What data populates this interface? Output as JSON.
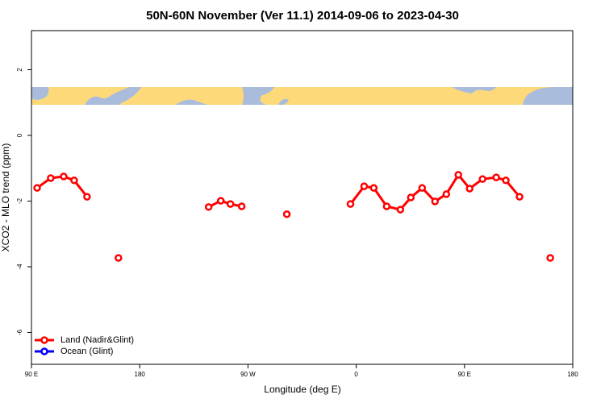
{
  "chart_data": {
    "type": "line",
    "title": "50N-60N November (Ver 11.1)   2014-09-06 to 2023-04-30",
    "x_label": "Longitude (deg E)",
    "y_label": "XCO2 - MLO trend (ppm)",
    "x": [
      94.7,
      106,
      116.8,
      125.5,
      136.2,
      149,
      162.3,
      200,
      237.3,
      247.4,
      255.4,
      264.8,
      283,
      302.3,
      330,
      355.2,
      366.6,
      374.6,
      385.3,
      396.7,
      405.4,
      414.8,
      425.5,
      434.9,
      444.9,
      454.3,
      465,
      476.4,
      484.4,
      495.8,
      508,
      521.3
    ],
    "series": [
      {
        "name": "Land (Nadir&Glint)",
        "color": "#ff0000",
        "values": [
          -1.6,
          -1.3,
          -1.25,
          -1.37,
          -1.87,
          null,
          -3.73,
          null,
          -2.18,
          -1.99,
          -2.09,
          -2.16,
          null,
          -2.4,
          null,
          -2.09,
          -1.55,
          -1.6,
          -2.16,
          -2.26,
          -1.89,
          -1.6,
          -2.01,
          -1.79,
          -1.2,
          -1.62,
          -1.33,
          -1.28,
          -1.37,
          -1.87,
          null,
          -3.73
        ]
      },
      {
        "name": "Ocean (Glint)",
        "color": "#0000ff",
        "values": [
          null,
          null,
          null,
          null,
          null,
          null,
          null,
          null,
          null,
          null,
          null,
          null,
          null,
          null,
          null,
          null,
          null,
          null,
          null,
          null,
          null,
          null,
          null,
          null,
          null,
          null,
          null,
          null,
          null,
          null,
          null,
          null
        ]
      }
    ],
    "xlim": [
      90,
      540
    ],
    "xticks": [
      {
        "value": 90,
        "label": "90 E"
      },
      180,
      {
        "value": 270,
        "label": "90 W"
      },
      {
        "value": 360,
        "label": "0"
      },
      {
        "value": 450,
        "label": "90 E"
      },
      {
        "value": 540,
        "label": "180"
      }
    ],
    "ylim": [
      -6.97,
      3.19
    ],
    "yticks": [
      -6,
      -4,
      -2,
      0,
      2
    ],
    "legend": "bottom-left"
  }
}
